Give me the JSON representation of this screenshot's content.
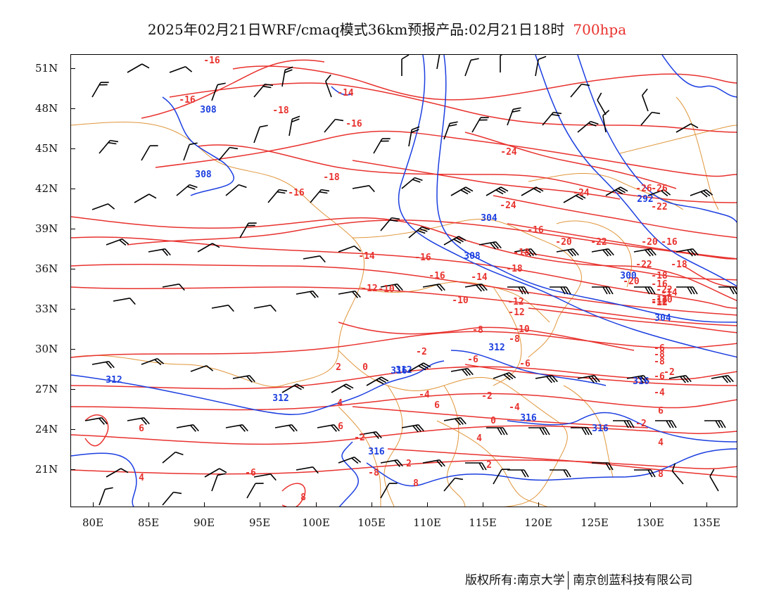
{
  "title": {
    "main": "2025年02月21日WRF/cmaq模式36km预报产品:02月21日18时",
    "level": "700hpa",
    "level_color": "#e8322e"
  },
  "axes": {
    "lat_labels": [
      "51N",
      "48N",
      "45N",
      "42N",
      "39N",
      "36N",
      "33N",
      "30N",
      "27N",
      "24N",
      "21N"
    ],
    "lon_labels": [
      "80E",
      "85E",
      "90E",
      "95E",
      "100E",
      "105E",
      "110E",
      "115E",
      "120E",
      "125E",
      "130E",
      "135E"
    ]
  },
  "colors": {
    "temperature": "#e8322e",
    "height": "#1c3fe0",
    "border": "#e0953a",
    "wind": "#000000"
  },
  "temperature_labels": [
    "-16",
    "-16",
    "-18",
    "-16",
    "-14",
    "-16",
    "-18",
    "-16",
    "-14",
    "-12",
    "-16",
    "-18",
    "-20",
    "-22",
    "-24",
    "-24",
    "-26",
    "-22",
    "-20",
    "-18",
    "-16",
    "-14",
    "-12",
    "-10",
    "-10",
    "-8",
    "-6",
    "-4",
    "-2",
    "0",
    "2",
    "4",
    "6",
    "8",
    "-2",
    "0",
    "2",
    "4",
    "6",
    "-6",
    "-8",
    "-10",
    "-12",
    "-14",
    "-16",
    "-18",
    "-20",
    "-22",
    "-24",
    "-2",
    "-4",
    "-6",
    "-8",
    "-10",
    "-12",
    "-14",
    "-16",
    "-18",
    "-22",
    "-26",
    "-4",
    "-6",
    "-8",
    "-12",
    "-2",
    "4",
    "6",
    "8",
    "-2",
    "-6",
    "2",
    "4",
    "6",
    "8",
    "-8"
  ],
  "height_labels": [
    "308",
    "308",
    "304",
    "308",
    "300",
    "304",
    "312",
    "312",
    "312",
    "312",
    "316",
    "316",
    "316",
    "316",
    "316",
    "292"
  ],
  "footer": {
    "left": "版权所有:南京大学",
    "right": "南京创蓝科技有限公司"
  }
}
